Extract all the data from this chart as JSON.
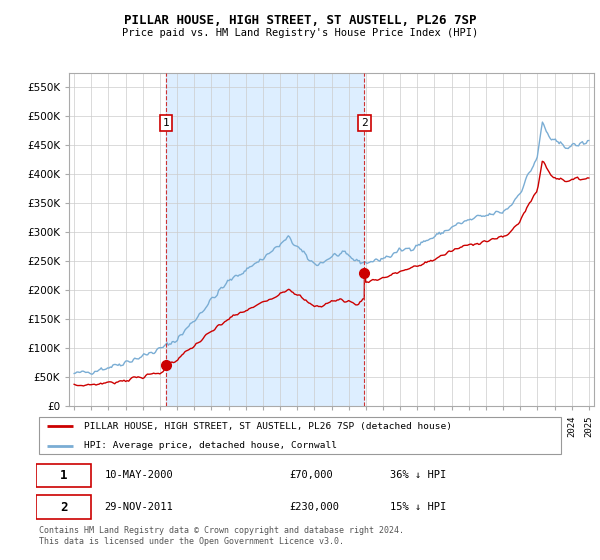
{
  "title": "PILLAR HOUSE, HIGH STREET, ST AUSTELL, PL26 7SP",
  "subtitle": "Price paid vs. HM Land Registry's House Price Index (HPI)",
  "legend_label_red": "PILLAR HOUSE, HIGH STREET, ST AUSTELL, PL26 7SP (detached house)",
  "legend_label_blue": "HPI: Average price, detached house, Cornwall",
  "transaction1_date": "10-MAY-2000",
  "transaction1_price": "£70,000",
  "transaction1_note": "36% ↓ HPI",
  "transaction2_date": "29-NOV-2011",
  "transaction2_price": "£230,000",
  "transaction2_note": "15% ↓ HPI",
  "footer": "Contains HM Land Registry data © Crown copyright and database right 2024.\nThis data is licensed under the Open Government Licence v3.0.",
  "red_color": "#cc0000",
  "blue_color": "#7aadd4",
  "shade_color": "#ddeeff",
  "ylim_max": 575000,
  "yticks": [
    0,
    50000,
    100000,
    150000,
    200000,
    250000,
    300000,
    350000,
    400000,
    450000,
    500000,
    550000
  ],
  "marker1_x": 2000.37,
  "marker1_y": 70000,
  "marker2_x": 2011.92,
  "marker2_y": 230000,
  "vline1_x": 2000.37,
  "vline2_x": 2011.92,
  "xlim_min": 1994.7,
  "xlim_max": 2025.3
}
